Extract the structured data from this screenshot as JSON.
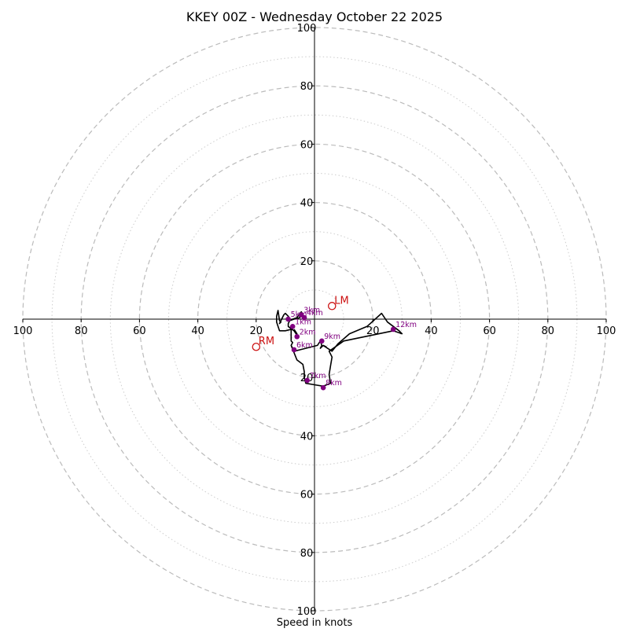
{
  "chart_data": {
    "type": "hodograph",
    "title": "KKEY 00Z - Wednesday October 22 2025",
    "xlabel": "Speed in knots",
    "unit": "knots",
    "range": [
      -100,
      100
    ],
    "rings_major": [
      20,
      40,
      60,
      80,
      100
    ],
    "rings_minor": [
      10,
      30,
      50,
      70,
      90
    ],
    "tick_labels": {
      "left": [
        "100",
        "80",
        "60",
        "40",
        "20"
      ],
      "right": [
        "20",
        "40",
        "60",
        "80",
        "100"
      ],
      "up": [
        "20",
        "40",
        "60",
        "80",
        "100"
      ],
      "down": [
        "20",
        "40",
        "60",
        "80",
        "100"
      ]
    },
    "trace": [
      [
        -7,
        -3.5
      ],
      [
        -6,
        -5
      ],
      [
        -6,
        -5.5
      ],
      [
        -7,
        -4
      ],
      [
        -9,
        -2.5
      ],
      [
        -9,
        -1.5
      ],
      [
        -8.5,
        -0.5
      ],
      [
        -7,
        0
      ],
      [
        -5,
        0.5
      ],
      [
        -5,
        1
      ],
      [
        -4,
        1.5
      ],
      [
        -4.5,
        2.5
      ],
      [
        -5,
        2
      ],
      [
        -6,
        0.5
      ],
      [
        -9,
        -0.5
      ],
      [
        -8.5,
        0
      ],
      [
        -9,
        1
      ],
      [
        -10,
        2
      ],
      [
        -10.5,
        1.5
      ],
      [
        -12,
        -1.5
      ],
      [
        -11.5,
        -1
      ],
      [
        -12,
        -0.5
      ],
      [
        -12.5,
        3
      ],
      [
        -13,
        1
      ],
      [
        -13,
        -1
      ],
      [
        -12,
        -4
      ],
      [
        -10,
        -4
      ],
      [
        -8,
        -3.5
      ],
      [
        -8,
        -5.5
      ],
      [
        -8,
        -7.5
      ],
      [
        -7.5,
        -8
      ],
      [
        -8,
        -9
      ],
      [
        -7,
        -11
      ],
      [
        -5,
        -10.5
      ],
      [
        1,
        -9
      ],
      [
        2,
        -7.5
      ],
      [
        2.5,
        -9
      ],
      [
        2,
        -10
      ],
      [
        3,
        -9
      ],
      [
        4,
        -9.5
      ],
      [
        3,
        -9
      ],
      [
        6,
        -11
      ],
      [
        8,
        -8.5
      ],
      [
        12,
        -5
      ],
      [
        18,
        -2.5
      ],
      [
        23,
        2
      ],
      [
        25,
        -1
      ],
      [
        29,
        -4
      ],
      [
        30,
        -5
      ],
      [
        27,
        -4
      ],
      [
        10,
        -7.5
      ],
      [
        5,
        -11
      ],
      [
        6,
        -13
      ],
      [
        5.5,
        -16
      ],
      [
        5,
        -19
      ],
      [
        5.5,
        -22
      ],
      [
        3,
        -23
      ],
      [
        0,
        -22.5
      ],
      [
        -3,
        -22
      ],
      [
        -3.5,
        -20
      ],
      [
        -3.5,
        -18
      ],
      [
        -4,
        -15.5
      ],
      [
        -6,
        -14
      ],
      [
        -7,
        -11.5
      ],
      [
        -8,
        -9
      ]
    ],
    "height_markers": [
      {
        "label": "1km",
        "u": -7.5,
        "v": -2.5
      },
      {
        "label": "2km",
        "u": -6,
        "v": -6
      },
      {
        "label": "3km",
        "u": -4.5,
        "v": 1.5
      },
      {
        "label": "4km",
        "u": -3.5,
        "v": 0.5
      },
      {
        "label": "5km",
        "u": -9,
        "v": 0
      },
      {
        "label": "6km",
        "u": -7,
        "v": -10.5
      },
      {
        "label": "7km",
        "u": -2.5,
        "v": -21
      },
      {
        "label": "8km",
        "u": 3,
        "v": -23.5
      },
      {
        "label": "9km",
        "u": 2.5,
        "v": -7.5
      },
      {
        "label": "12km",
        "u": 27,
        "v": -3.5
      }
    ],
    "storm_motion": [
      {
        "label": "LM",
        "u": 6,
        "v": 4.5
      },
      {
        "label": "RM",
        "u": -20,
        "v": -9.5
      }
    ],
    "colors": {
      "trace": "#000000",
      "markers": "#800080",
      "storm_motion": "#cc1111",
      "rings": "#bbbbbb"
    }
  }
}
